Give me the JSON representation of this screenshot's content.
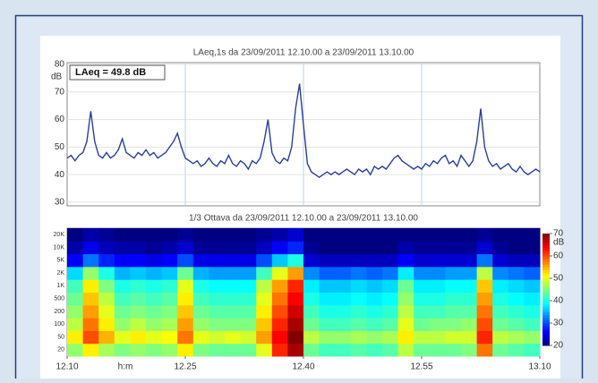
{
  "chart_data": [
    {
      "type": "line",
      "title": "LAeq,1s    da 23/09/2011 12.10.00    a 23/09/2011 13.10.00",
      "ylabel": "dB",
      "annotation": "LAeq = 49.8 dB",
      "color": "#2b3f9c",
      "ylim": [
        29,
        80
      ],
      "yticks": [
        30,
        40,
        50,
        60,
        70,
        80
      ],
      "xlim": [
        0,
        60
      ],
      "grid": true,
      "x": [
        0,
        0.5,
        1,
        1.5,
        2,
        2.5,
        3,
        3.5,
        4,
        4.5,
        5,
        5.5,
        6,
        6.5,
        7,
        7.5,
        8,
        8.5,
        9,
        9.5,
        10,
        10.5,
        11,
        11.5,
        12,
        12.5,
        13,
        13.5,
        14,
        14.5,
        15,
        15.5,
        16,
        16.5,
        17,
        17.5,
        18,
        18.5,
        19,
        19.5,
        20,
        20.5,
        21,
        21.5,
        22,
        22.5,
        23,
        23.5,
        24,
        24.5,
        25,
        25.5,
        26,
        26.5,
        27,
        27.5,
        28,
        28.5,
        29,
        29.5,
        30,
        30.5,
        31,
        31.5,
        32,
        32.5,
        33,
        33.5,
        34,
        34.5,
        35,
        35.5,
        36,
        36.5,
        37,
        37.5,
        38,
        38.5,
        39,
        39.5,
        40,
        40.5,
        41,
        41.5,
        42,
        42.5,
        43,
        43.5,
        44,
        44.5,
        45,
        45.5,
        46,
        46.5,
        47,
        47.5,
        48,
        48.5,
        49,
        49.5,
        50,
        50.5,
        51,
        51.5,
        52,
        52.5,
        53,
        53.5,
        54,
        54.5,
        55,
        55.5,
        56,
        56.5,
        57,
        57.5,
        58,
        58.5,
        59,
        59.5,
        60
      ],
      "values": [
        46,
        47,
        45,
        47,
        48,
        52,
        63,
        52,
        47,
        46,
        48,
        46,
        47,
        49,
        53,
        48,
        47,
        46,
        48,
        47,
        49,
        47,
        48,
        46,
        47,
        48,
        50,
        52,
        55,
        50,
        46,
        45,
        44,
        45,
        43,
        44,
        46,
        44,
        43,
        45,
        44,
        47,
        44,
        43,
        45,
        44,
        42,
        45,
        44,
        46,
        52,
        60,
        48,
        45,
        44,
        46,
        45,
        50,
        64,
        73,
        58,
        44,
        41,
        40,
        39,
        40,
        41,
        40,
        41,
        40,
        41,
        42,
        41,
        40,
        42,
        41,
        42,
        40,
        43,
        42,
        43,
        42,
        44,
        46,
        47,
        45,
        44,
        43,
        42,
        43,
        42,
        44,
        43,
        45,
        44,
        46,
        47,
        44,
        45,
        43,
        47,
        45,
        43,
        45,
        52,
        64,
        50,
        45,
        43,
        44,
        42,
        43,
        44,
        42,
        41,
        43,
        41,
        40,
        41,
        42,
        41
      ]
    },
    {
      "type": "heatmap",
      "title": "1/3 Ottava    da 23/09/2011 12.10.00    a 23/09/2011 13.10.00",
      "xlabel": "h:m",
      "xlim": [
        0,
        60
      ],
      "xticks": [
        {
          "value": 0,
          "label": "12.10"
        },
        {
          "value": 15,
          "label": "12.25"
        },
        {
          "value": 30,
          "label": "12.40"
        },
        {
          "value": 45,
          "label": "12.55"
        },
        {
          "value": 60,
          "label": "13.10"
        }
      ],
      "y_categories": [
        "20",
        "50",
        "100",
        "200",
        "500",
        "1K",
        "2K",
        "5K",
        "10K",
        "20K"
      ],
      "colorbar_label": "dB",
      "clim": [
        20,
        70
      ],
      "cticks": [
        20,
        30,
        40,
        50,
        60,
        70
      ],
      "values": [
        [
          46,
          52,
          47,
          45,
          46,
          45,
          46,
          52,
          45,
          44,
          44,
          44,
          50,
          62,
          68,
          44,
          42,
          42,
          43,
          42,
          43,
          48,
          44,
          44,
          44,
          45,
          58,
          44,
          43,
          42
        ],
        [
          52,
          60,
          55,
          50,
          52,
          50,
          51,
          58,
          50,
          49,
          50,
          49,
          56,
          64,
          70,
          48,
          46,
          46,
          47,
          46,
          47,
          52,
          48,
          48,
          49,
          49,
          62,
          48,
          47,
          46
        ],
        [
          48,
          58,
          52,
          46,
          48,
          46,
          47,
          56,
          46,
          45,
          45,
          45,
          54,
          62,
          68,
          44,
          42,
          42,
          43,
          42,
          43,
          50,
          44,
          45,
          45,
          46,
          60,
          44,
          43,
          42
        ],
        [
          46,
          56,
          50,
          44,
          45,
          44,
          45,
          54,
          44,
          43,
          43,
          43,
          52,
          60,
          66,
          42,
          40,
          40,
          41,
          40,
          41,
          48,
          42,
          42,
          43,
          43,
          58,
          42,
          41,
          40
        ],
        [
          44,
          54,
          48,
          42,
          43,
          42,
          43,
          52,
          42,
          41,
          41,
          41,
          50,
          58,
          64,
          40,
          38,
          38,
          39,
          38,
          39,
          46,
          40,
          40,
          41,
          41,
          56,
          40,
          39,
          38
        ],
        [
          42,
          52,
          45,
          40,
          41,
          40,
          41,
          50,
          40,
          39,
          39,
          39,
          48,
          56,
          62,
          38,
          36,
          36,
          37,
          36,
          37,
          44,
          38,
          38,
          39,
          39,
          54,
          38,
          37,
          36
        ],
        [
          37,
          46,
          40,
          35,
          36,
          35,
          36,
          44,
          35,
          34,
          34,
          34,
          42,
          50,
          56,
          33,
          31,
          31,
          32,
          31,
          32,
          38,
          33,
          33,
          34,
          34,
          48,
          33,
          32,
          31
        ],
        [
          26,
          32,
          28,
          26,
          26,
          25,
          26,
          30,
          25,
          25,
          25,
          25,
          30,
          36,
          40,
          24,
          23,
          23,
          23,
          23,
          23,
          26,
          24,
          24,
          24,
          24,
          32,
          24,
          23,
          23
        ],
        [
          22,
          25,
          23,
          22,
          22,
          21,
          22,
          24,
          21,
          21,
          21,
          21,
          23,
          26,
          28,
          21,
          20,
          20,
          20,
          20,
          20,
          22,
          21,
          21,
          21,
          21,
          24,
          21,
          20,
          20
        ],
        [
          20,
          22,
          21,
          20,
          20,
          20,
          20,
          21,
          20,
          20,
          20,
          20,
          21,
          22,
          24,
          20,
          20,
          20,
          20,
          20,
          20,
          20,
          20,
          20,
          20,
          20,
          21,
          20,
          20,
          20
        ]
      ]
    }
  ]
}
